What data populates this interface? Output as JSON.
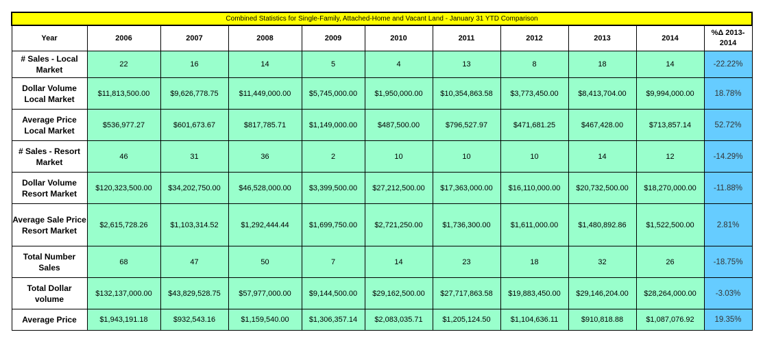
{
  "title": "Combined Statistics for Single-Family, Attached-Home and Vacant Land - January 31 YTD Comparison",
  "header": {
    "year_label": "Year",
    "years": [
      "2006",
      "2007",
      "2008",
      "2009",
      "2010",
      "2011",
      "2012",
      "2013",
      "2014"
    ],
    "pct_label": "%Δ 2013-2014"
  },
  "rows": [
    {
      "label": "# Sales  - Local Market",
      "values": [
        "22",
        "16",
        "14",
        "5",
        "4",
        "13",
        "8",
        "18",
        "14"
      ],
      "pct": "-22.22%"
    },
    {
      "label": "Dollar Volume Local Market",
      "values": [
        "$11,813,500.00",
        "$9,626,778.75",
        "$11,449,000.00",
        "$5,745,000.00",
        "$1,950,000.00",
        "$10,354,863.58",
        "$3,773,450.00",
        "$8,413,704.00",
        "$9,994,000.00"
      ],
      "pct": "18.78%"
    },
    {
      "label": "Average Price Local Market",
      "values": [
        "$536,977.27",
        "$601,673.67",
        "$817,785.71",
        "$1,149,000.00",
        "$487,500.00",
        "$796,527.97",
        "$471,681.25",
        "$467,428.00",
        "$713,857.14"
      ],
      "pct": "52.72%"
    },
    {
      "label": "# Sales  - Resort Market",
      "values": [
        "46",
        "31",
        "36",
        "2",
        "10",
        "10",
        "10",
        "14",
        "12"
      ],
      "pct": "-14.29%"
    },
    {
      "label": "Dollar Volume Resort Market",
      "values": [
        "$120,323,500.00",
        "$34,202,750.00",
        "$46,528,000.00",
        "$3,399,500.00",
        "$27,212,500.00",
        "$17,363,000.00",
        "$16,110,000.00",
        "$20,732,500.00",
        "$18,270,000.00"
      ],
      "pct": "-11.88%"
    },
    {
      "label": "Average Sale Price Resort Market",
      "values": [
        "$2,615,728.26",
        "$1,103,314.52",
        "$1,292,444.44",
        "$1,699,750.00",
        "$2,721,250.00",
        "$1,736,300.00",
        "$1,611,000.00",
        "$1,480,892.86",
        "$1,522,500.00"
      ],
      "pct": "2.81%"
    },
    {
      "label": "Total Number Sales",
      "values": [
        "68",
        "47",
        "50",
        "7",
        "14",
        "23",
        "18",
        "32",
        "26"
      ],
      "pct": "-18.75%"
    },
    {
      "label": "Total Dollar volume",
      "values": [
        "$132,137,000.00",
        "$43,829,528.75",
        "$57,977,000.00",
        "$9,144,500.00",
        "$29,162,500.00",
        "$27,717,863.58",
        "$19,883,450.00",
        "$29,146,204.00",
        "$28,264,000.00"
      ],
      "pct": "-3.03%"
    },
    {
      "label": "Average Price",
      "values": [
        "$1,943,191.18",
        "$932,543.16",
        "$1,159,540.00",
        "$1,306,357.14",
        "$2,083,035.71",
        "$1,205,124.50",
        "$1,104,636.11",
        "$910,818.88",
        "$1,087,076.92"
      ],
      "pct": "19.35%"
    }
  ],
  "colors": {
    "title_bg": "#ffff00",
    "value_bg": "#99ffcc",
    "pct_bg": "#66ccff"
  }
}
